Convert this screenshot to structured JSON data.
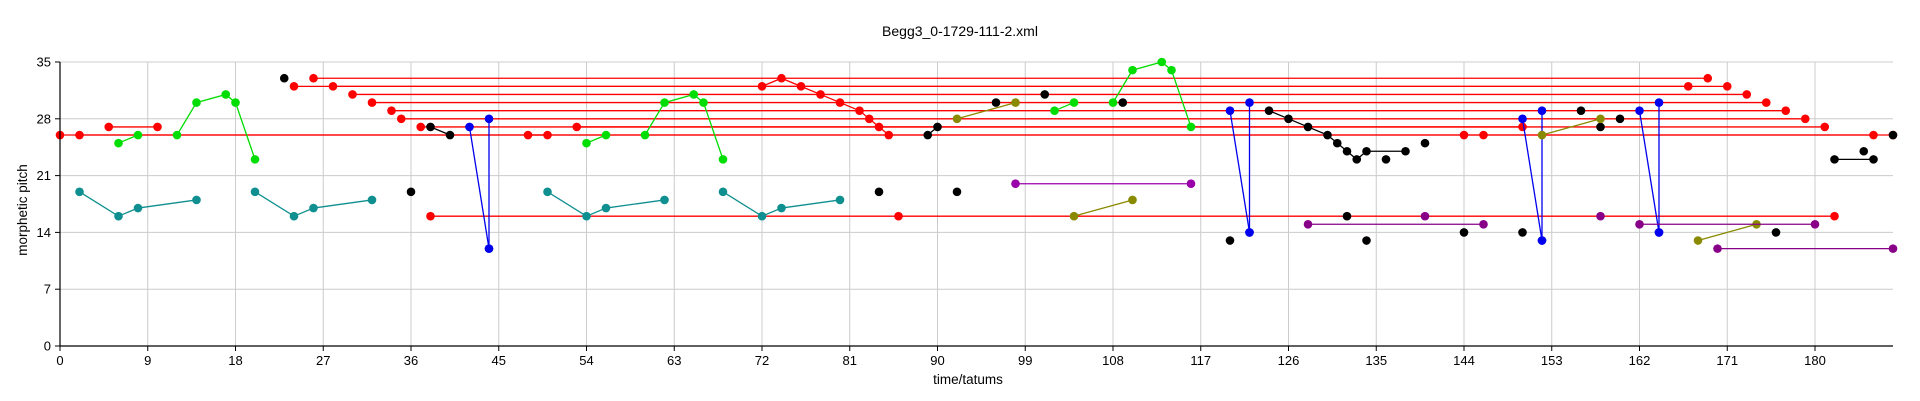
{
  "chart_data": {
    "type": "scatter",
    "title": "Begg3_0-1729-111-2.xml",
    "xlabel": "time/tatums",
    "ylabel": "morphetic pitch",
    "xlim": [
      0,
      188
    ],
    "ylim": [
      0,
      35
    ],
    "x_ticks": [
      0,
      9,
      18,
      27,
      36,
      45,
      54,
      63,
      72,
      81,
      90,
      99,
      108,
      117,
      126,
      135,
      144,
      153,
      162,
      171,
      180
    ],
    "y_ticks": [
      0,
      7,
      14,
      21,
      28,
      35
    ],
    "grid": true,
    "colors": {
      "red": "#ff0000",
      "green": "#00dd00",
      "teal": "#0f8f8f",
      "blue": "#0000ee",
      "black": "#000000",
      "olive": "#8a8a00",
      "purple": "#9900aa",
      "darkpurple": "#880088",
      "grid": "#cccccc"
    },
    "series": [
      {
        "color": "red",
        "points": [
          [
            0,
            26
          ],
          [
            188,
            26
          ]
        ]
      },
      {
        "color": "red",
        "points": [
          [
            2,
            26
          ],
          [
            186,
            26
          ]
        ]
      },
      {
        "color": "red",
        "points": [
          [
            5,
            27
          ],
          [
            10,
            27
          ]
        ]
      },
      {
        "color": "red",
        "points": [
          [
            48,
            26
          ],
          [
            50,
            26
          ]
        ]
      },
      {
        "color": "red",
        "points": [
          [
            24,
            32
          ],
          [
            167,
            32
          ]
        ]
      },
      {
        "color": "red",
        "points": [
          [
            26,
            33
          ],
          [
            169,
            33
          ]
        ]
      },
      {
        "color": "red",
        "points": [
          [
            28,
            32
          ],
          [
            171,
            32
          ]
        ]
      },
      {
        "color": "red",
        "points": [
          [
            30,
            31
          ],
          [
            173,
            31
          ]
        ]
      },
      {
        "color": "red",
        "points": [
          [
            32,
            30
          ],
          [
            175,
            30
          ]
        ]
      },
      {
        "color": "red",
        "points": [
          [
            34,
            29
          ],
          [
            177,
            29
          ]
        ]
      },
      {
        "color": "red",
        "points": [
          [
            35,
            28
          ],
          [
            179,
            28
          ]
        ]
      },
      {
        "color": "red",
        "points": [
          [
            37,
            27
          ],
          [
            181,
            27
          ]
        ]
      },
      {
        "color": "red",
        "points": [
          [
            38,
            16
          ],
          [
            182,
            16
          ]
        ]
      },
      {
        "color": "red",
        "points": [
          [
            53,
            27
          ],
          [
            150,
            27
          ]
        ]
      },
      {
        "color": "red",
        "points": [
          [
            72,
            32
          ],
          [
            74,
            33
          ],
          [
            76,
            32
          ],
          [
            78,
            31
          ],
          [
            80,
            30
          ],
          [
            82,
            29
          ],
          [
            83,
            28
          ],
          [
            84,
            27
          ],
          [
            85,
            26
          ]
        ]
      },
      {
        "color": "red",
        "points": [
          [
            86,
            16
          ]
        ]
      },
      {
        "color": "red",
        "points": [
          [
            144,
            26
          ]
        ]
      },
      {
        "color": "red",
        "points": [
          [
            146,
            26
          ]
        ]
      },
      {
        "color": "green",
        "points": [
          [
            6,
            25
          ],
          [
            8,
            26
          ]
        ]
      },
      {
        "color": "green",
        "points": [
          [
            12,
            26
          ],
          [
            14,
            30
          ],
          [
            17,
            31
          ],
          [
            18,
            30
          ],
          [
            20,
            23
          ]
        ]
      },
      {
        "color": "green",
        "points": [
          [
            54,
            25
          ],
          [
            56,
            26
          ]
        ]
      },
      {
        "color": "green",
        "points": [
          [
            60,
            26
          ],
          [
            62,
            30
          ],
          [
            65,
            31
          ],
          [
            66,
            30
          ],
          [
            68,
            23
          ]
        ]
      },
      {
        "color": "green",
        "points": [
          [
            102,
            29
          ],
          [
            104,
            30
          ]
        ]
      },
      {
        "color": "green",
        "points": [
          [
            108,
            30
          ],
          [
            110,
            34
          ],
          [
            113,
            35
          ],
          [
            114,
            34
          ],
          [
            116,
            27
          ]
        ]
      },
      {
        "color": "teal",
        "points": [
          [
            2,
            19
          ],
          [
            6,
            16
          ],
          [
            8,
            17
          ],
          [
            14,
            18
          ]
        ]
      },
      {
        "color": "teal",
        "points": [
          [
            20,
            19
          ],
          [
            24,
            16
          ],
          [
            26,
            17
          ],
          [
            32,
            18
          ]
        ]
      },
      {
        "color": "teal",
        "points": [
          [
            50,
            19
          ],
          [
            54,
            16
          ],
          [
            56,
            17
          ],
          [
            62,
            18
          ]
        ]
      },
      {
        "color": "teal",
        "points": [
          [
            68,
            19
          ],
          [
            72,
            16
          ],
          [
            74,
            17
          ],
          [
            80,
            18
          ]
        ]
      },
      {
        "color": "blue",
        "points": [
          [
            42,
            27
          ],
          [
            44,
            12
          ]
        ]
      },
      {
        "color": "blue",
        "points": [
          [
            44,
            28
          ],
          [
            44,
            12
          ]
        ]
      },
      {
        "color": "blue",
        "points": [
          [
            120,
            29
          ],
          [
            122,
            14
          ]
        ]
      },
      {
        "color": "blue",
        "points": [
          [
            122,
            30
          ],
          [
            122,
            14
          ]
        ]
      },
      {
        "color": "blue",
        "points": [
          [
            150,
            28
          ],
          [
            152,
            13
          ]
        ]
      },
      {
        "color": "blue",
        "points": [
          [
            152,
            29
          ],
          [
            152,
            13
          ]
        ]
      },
      {
        "color": "blue",
        "points": [
          [
            162,
            29
          ],
          [
            164,
            14
          ]
        ]
      },
      {
        "color": "blue",
        "points": [
          [
            164,
            30
          ],
          [
            164,
            14
          ]
        ]
      },
      {
        "color": "black",
        "points": [
          [
            23,
            33
          ]
        ]
      },
      {
        "color": "black",
        "points": [
          [
            36,
            19
          ]
        ]
      },
      {
        "color": "black",
        "points": [
          [
            38,
            27
          ],
          [
            40,
            26
          ]
        ]
      },
      {
        "color": "black",
        "points": [
          [
            84,
            19
          ]
        ]
      },
      {
        "color": "black",
        "points": [
          [
            89,
            26
          ],
          [
            90,
            27
          ]
        ]
      },
      {
        "color": "black",
        "points": [
          [
            92,
            19
          ]
        ]
      },
      {
        "color": "black",
        "points": [
          [
            96,
            30
          ]
        ]
      },
      {
        "color": "black",
        "points": [
          [
            101,
            31
          ]
        ]
      },
      {
        "color": "black",
        "points": [
          [
            109,
            30
          ]
        ]
      },
      {
        "color": "black",
        "points": [
          [
            120,
            13
          ]
        ]
      },
      {
        "color": "black",
        "points": [
          [
            124,
            29
          ],
          [
            126,
            28
          ],
          [
            128,
            27
          ],
          [
            130,
            26
          ],
          [
            131,
            25
          ],
          [
            132,
            24
          ],
          [
            133,
            23
          ],
          [
            134,
            24
          ],
          [
            138,
            24
          ]
        ]
      },
      {
        "color": "black",
        "points": [
          [
            132,
            16
          ]
        ]
      },
      {
        "color": "black",
        "points": [
          [
            134,
            13
          ]
        ]
      },
      {
        "color": "black",
        "points": [
          [
            136,
            23
          ]
        ]
      },
      {
        "color": "black",
        "points": [
          [
            140,
            25
          ]
        ]
      },
      {
        "color": "black",
        "points": [
          [
            144,
            14
          ]
        ]
      },
      {
        "color": "black",
        "points": [
          [
            150,
            14
          ]
        ]
      },
      {
        "color": "black",
        "points": [
          [
            156,
            29
          ]
        ]
      },
      {
        "color": "black",
        "points": [
          [
            158,
            27
          ]
        ]
      },
      {
        "color": "black",
        "points": [
          [
            160,
            28
          ]
        ]
      },
      {
        "color": "black",
        "points": [
          [
            176,
            14
          ]
        ]
      },
      {
        "color": "black",
        "points": [
          [
            182,
            23
          ],
          [
            186,
            23
          ]
        ]
      },
      {
        "color": "black",
        "points": [
          [
            185,
            24
          ]
        ]
      },
      {
        "color": "black",
        "points": [
          [
            188,
            26
          ]
        ]
      },
      {
        "color": "olive",
        "points": [
          [
            92,
            28
          ],
          [
            98,
            30
          ]
        ]
      },
      {
        "color": "olive",
        "points": [
          [
            104,
            16
          ],
          [
            110,
            18
          ]
        ]
      },
      {
        "color": "olive",
        "points": [
          [
            152,
            26
          ],
          [
            158,
            28
          ]
        ]
      },
      {
        "color": "olive",
        "points": [
          [
            168,
            13
          ],
          [
            174,
            15
          ]
        ]
      },
      {
        "color": "purple",
        "points": [
          [
            98,
            20
          ],
          [
            116,
            20
          ]
        ]
      },
      {
        "color": "darkpurple",
        "points": [
          [
            128,
            15
          ],
          [
            146,
            15
          ]
        ]
      },
      {
        "color": "darkpurple",
        "points": [
          [
            140,
            16
          ]
        ]
      },
      {
        "color": "darkpurple",
        "points": [
          [
            158,
            16
          ]
        ]
      },
      {
        "color": "darkpurple",
        "points": [
          [
            162,
            15
          ],
          [
            180,
            15
          ]
        ]
      },
      {
        "color": "darkpurple",
        "points": [
          [
            170,
            12
          ],
          [
            188,
            12
          ]
        ]
      }
    ]
  }
}
